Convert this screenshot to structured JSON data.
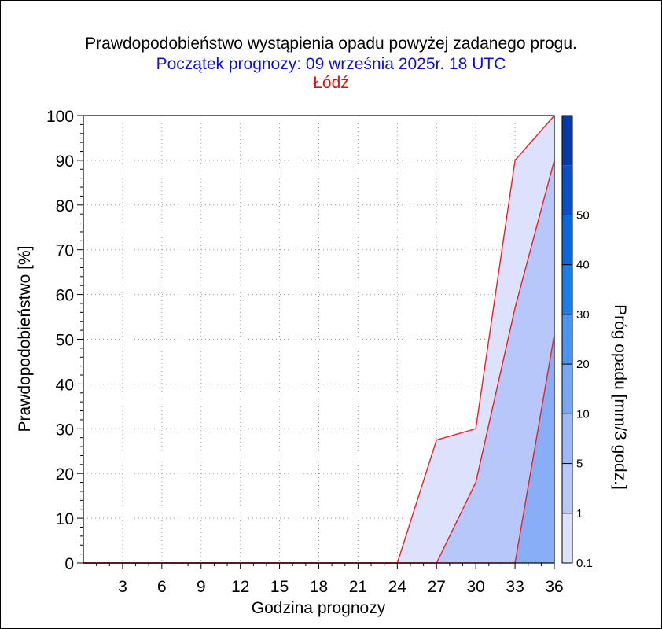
{
  "header": {
    "title": "Prawdopodobieństwo wystąpienia opadu powyżej zadanego progu.",
    "subtitle": "Początek prognozy: 09 września 2025r. 18 UTC",
    "location": "Łódź"
  },
  "chart_data": {
    "type": "area",
    "title": "Prawdopodobieństwo wystąpienia opadu powyżej zadanego progu.",
    "subtitle": "Początek prognozy: 09 września 2025r. 18 UTC",
    "location": "Łódź",
    "xlabel": "Godzina prognozy",
    "ylabel": "Prawdopodobieństwo [%]",
    "xlim": [
      0,
      36
    ],
    "ylim": [
      0,
      100
    ],
    "xticks": [
      3,
      6,
      9,
      12,
      15,
      18,
      21,
      24,
      27,
      30,
      33,
      36
    ],
    "yticks": [
      0,
      10,
      20,
      30,
      40,
      50,
      60,
      70,
      80,
      90,
      100
    ],
    "grid": true,
    "x": [
      0,
      3,
      6,
      9,
      12,
      15,
      18,
      21,
      24,
      27,
      30,
      33,
      36
    ],
    "series": [
      {
        "name": "0.1",
        "color": "#dde2fc",
        "values": [
          0,
          0,
          0,
          0,
          0,
          0,
          0,
          0,
          0,
          27.5,
          30,
          90,
          100
        ]
      },
      {
        "name": "1",
        "color": "#b7c7f9",
        "values": [
          0,
          0,
          0,
          0,
          0,
          0,
          0,
          0,
          0,
          0,
          18,
          57,
          90
        ]
      },
      {
        "name": "5",
        "color": "#88aef7",
        "values": [
          0,
          0,
          0,
          0,
          0,
          0,
          0,
          0,
          0,
          0,
          0,
          0,
          51
        ]
      }
    ],
    "line_color": "#e8202a",
    "colorbar": {
      "label": "Próg opadu [mm/3 godz.]",
      "tick_labels": [
        "0.1",
        "1",
        "5",
        "10",
        "20",
        "30",
        "40",
        "50"
      ],
      "colors": [
        "#dde2fc",
        "#b7c7f9",
        "#9bb9f8",
        "#7aa6f6",
        "#4a95f0",
        "#1a7ee8",
        "#0d66dc",
        "#0a4fc8",
        "#0738a8"
      ]
    }
  }
}
